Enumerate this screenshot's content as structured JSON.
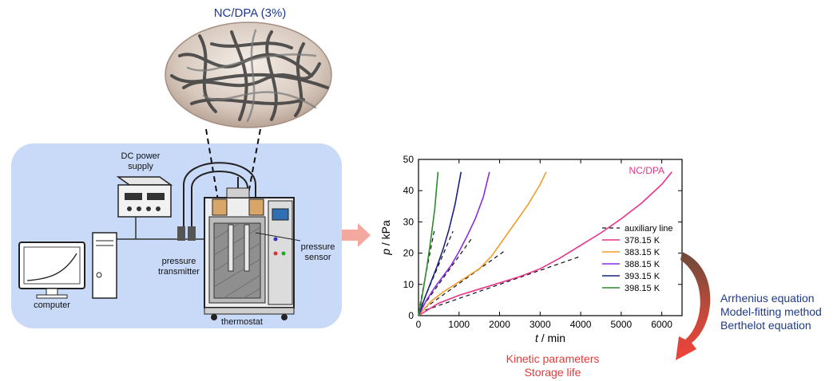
{
  "figure": {
    "sample_label": "NC/DPA (3%)",
    "apparatus": {
      "dc_power_supply": "DC power\nsupply",
      "computer": "computer",
      "pressure_transmitter": "pressure\ntransmitter",
      "pressure_sensor": "pressure\nsensor",
      "thermostat": "thermostat"
    },
    "methods": [
      "Arrhenius equation",
      "Model-fitting method",
      "Berthelot equation"
    ],
    "outputs": [
      "Kinetic parameters",
      "Storage life"
    ],
    "colors": {
      "panel_bg": "#c9daf8",
      "method_text": "#1f3a8a",
      "output_text": "#e23b3b",
      "arrow": "#f4a8a0"
    }
  },
  "chart_data": {
    "type": "line",
    "xlabel_var": "t",
    "xlabel_unit": " / min",
    "ylabel_var": "p",
    "ylabel_unit": " / kPa",
    "xlim": [
      0,
      6500
    ],
    "ylim": [
      0,
      50
    ],
    "xticks": [
      0,
      1000,
      2000,
      3000,
      4000,
      5000,
      6000
    ],
    "yticks": [
      0,
      10,
      20,
      30,
      40,
      50
    ],
    "annotation": "NC/DPA",
    "legend_position": "bottom-right",
    "auxiliary_label": "auxiliary line",
    "series": [
      {
        "name": "378.15 K",
        "color": "#e8328a",
        "x": [
          0,
          500,
          1000,
          1500,
          2000,
          2500,
          3000,
          3500,
          4000,
          4500,
          5000,
          5500,
          6000,
          6250
        ],
        "y": [
          0,
          4,
          6.5,
          8.5,
          10.5,
          12.5,
          15,
          18.5,
          22.5,
          26.5,
          31,
          36,
          42,
          46
        ]
      },
      {
        "name": "383.15 K",
        "color": "#f39a2b",
        "x": [
          0,
          300,
          600,
          900,
          1200,
          1500,
          1800,
          2100,
          2400,
          2700,
          3000,
          3150
        ],
        "y": [
          0,
          4.5,
          7.5,
          10,
          12.5,
          15,
          19,
          24.5,
          30,
          35.5,
          42,
          46
        ]
      },
      {
        "name": "388.15 K",
        "color": "#8a2be2",
        "x": [
          0,
          200,
          400,
          600,
          800,
          1000,
          1200,
          1400,
          1600,
          1750
        ],
        "y": [
          0,
          5,
          9,
          12.5,
          16,
          20.5,
          25.5,
          31,
          38,
          46
        ]
      },
      {
        "name": "393.15 K",
        "color": "#1a237e",
        "x": [
          0,
          150,
          300,
          450,
          600,
          750,
          900,
          1050
        ],
        "y": [
          0,
          5.5,
          10.5,
          15.5,
          21,
          27.5,
          35.5,
          46
        ]
      },
      {
        "name": "398.15 K",
        "color": "#2e8b2e",
        "x": [
          0,
          100,
          200,
          300,
          400,
          480
        ],
        "y": [
          0,
          7,
          15,
          24,
          34,
          46
        ]
      }
    ],
    "auxiliary_lines": [
      {
        "x": [
          0,
          4000
        ],
        "y": [
          1,
          19
        ]
      },
      {
        "x": [
          0,
          2100
        ],
        "y": [
          1,
          20.5
        ]
      },
      {
        "x": [
          0,
          1300
        ],
        "y": [
          1,
          24.5
        ]
      },
      {
        "x": [
          0,
          850
        ],
        "y": [
          1,
          27
        ]
      },
      {
        "x": [
          0,
          400
        ],
        "y": [
          1,
          28
        ]
      }
    ]
  }
}
